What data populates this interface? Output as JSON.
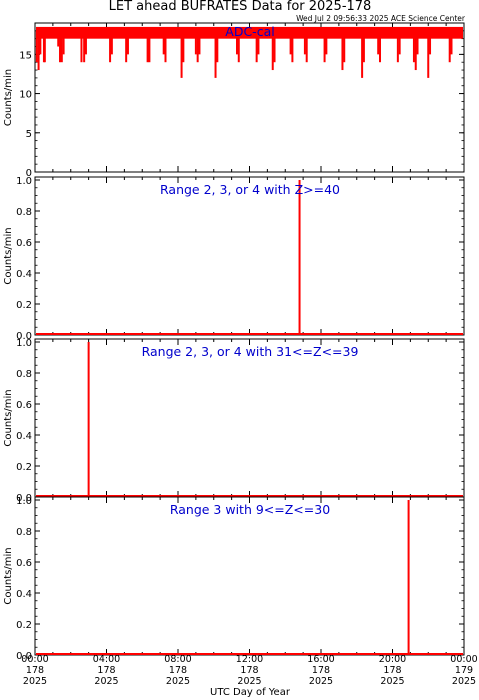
{
  "title": "LET ahead BUFRATES Data for 2025-178",
  "timestamp": "Wed Jul  2 09:56:33 2025 ACE Science Center",
  "x_label": "UTC Day of Year",
  "x_ticks": [
    {
      "time": "00:00",
      "day": "178",
      "year": "2025"
    },
    {
      "time": "04:00",
      "day": "178",
      "year": "2025"
    },
    {
      "time": "08:00",
      "day": "178",
      "year": "2025"
    },
    {
      "time": "12:00",
      "day": "178",
      "year": "2025"
    },
    {
      "time": "16:00",
      "day": "178",
      "year": "2025"
    },
    {
      "time": "20:00",
      "day": "178",
      "year": "2025"
    },
    {
      "time": "00:00",
      "day": "179",
      "year": "2025"
    }
  ],
  "colors": {
    "trace": "#ff0000",
    "label": "#0000cc",
    "axis": "#000000"
  },
  "chart_data": [
    {
      "type": "line",
      "title": "ADC-cal",
      "ylabel": "Counts/min",
      "xlim": [
        0,
        24
      ],
      "ylim": [
        0,
        19
      ],
      "yticks": [
        0,
        5,
        10,
        15
      ],
      "yticklabels": [
        "0",
        "5",
        "10",
        "15"
      ],
      "baseline": 18,
      "band": [
        17,
        18.5
      ],
      "dips": [
        [
          0.1,
          14
        ],
        [
          0.2,
          13
        ],
        [
          0.3,
          15
        ],
        [
          0.5,
          14
        ],
        [
          0.55,
          14
        ],
        [
          1.3,
          16
        ],
        [
          1.4,
          14
        ],
        [
          1.5,
          14
        ],
        [
          1.6,
          15
        ],
        [
          2.6,
          14
        ],
        [
          2.75,
          14
        ],
        [
          2.85,
          15
        ],
        [
          4.2,
          14
        ],
        [
          4.3,
          15
        ],
        [
          5.1,
          14
        ],
        [
          5.2,
          15
        ],
        [
          6.3,
          14
        ],
        [
          6.4,
          14
        ],
        [
          7.2,
          15
        ],
        [
          7.3,
          14
        ],
        [
          8.2,
          12
        ],
        [
          8.3,
          14
        ],
        [
          9.0,
          15
        ],
        [
          9.1,
          14
        ],
        [
          9.2,
          15
        ],
        [
          10.1,
          12
        ],
        [
          10.2,
          14
        ],
        [
          11.3,
          15
        ],
        [
          11.4,
          14
        ],
        [
          12.4,
          14
        ],
        [
          12.5,
          15
        ],
        [
          13.3,
          13
        ],
        [
          13.4,
          14
        ],
        [
          14.3,
          15
        ],
        [
          14.4,
          14
        ],
        [
          15.1,
          15
        ],
        [
          15.2,
          14
        ],
        [
          16.2,
          14
        ],
        [
          16.3,
          15
        ],
        [
          17.2,
          13
        ],
        [
          17.3,
          14
        ],
        [
          18.3,
          12
        ],
        [
          18.4,
          14
        ],
        [
          19.2,
          15
        ],
        [
          19.3,
          14
        ],
        [
          20.3,
          14
        ],
        [
          20.4,
          15
        ],
        [
          21.2,
          14
        ],
        [
          21.3,
          13
        ],
        [
          21.4,
          15
        ],
        [
          22.0,
          12
        ],
        [
          22.1,
          15
        ],
        [
          23.2,
          14
        ],
        [
          23.3,
          15
        ]
      ]
    },
    {
      "type": "line",
      "title": "Range 2, 3, or 4 with Z>=40",
      "ylabel": "Counts/min",
      "xlim": [
        0,
        24
      ],
      "ylim": [
        0,
        1
      ],
      "yticks": [
        0,
        0.2,
        0.4,
        0.6,
        0.8,
        1.0
      ],
      "yticklabels": [
        "0.0",
        "0.2",
        "0.4",
        "0.6",
        "0.8",
        "1.0"
      ],
      "baseline": 0,
      "spikes": [
        [
          14.8,
          1
        ]
      ]
    },
    {
      "type": "line",
      "title": "Range 2, 3, or 4 with 31<=Z<=39",
      "ylabel": "Counts/min",
      "xlim": [
        0,
        24
      ],
      "ylim": [
        0,
        1
      ],
      "yticks": [
        0,
        0.2,
        0.4,
        0.6,
        0.8,
        1.0
      ],
      "yticklabels": [
        "0.0",
        "0.2",
        "0.4",
        "0.6",
        "0.8",
        "1.0"
      ],
      "baseline": 0,
      "spikes": [
        [
          3.0,
          1
        ]
      ]
    },
    {
      "type": "line",
      "title": "Range 3 with 9<=Z<=30",
      "ylabel": "Counts/min",
      "xlim": [
        0,
        24
      ],
      "ylim": [
        0,
        1
      ],
      "yticks": [
        0,
        0.2,
        0.4,
        0.6,
        0.8,
        1.0
      ],
      "yticklabels": [
        "0.0",
        "0.2",
        "0.4",
        "0.6",
        "0.8",
        "1.0"
      ],
      "baseline": 0,
      "spikes": [
        [
          20.9,
          1
        ]
      ]
    }
  ]
}
